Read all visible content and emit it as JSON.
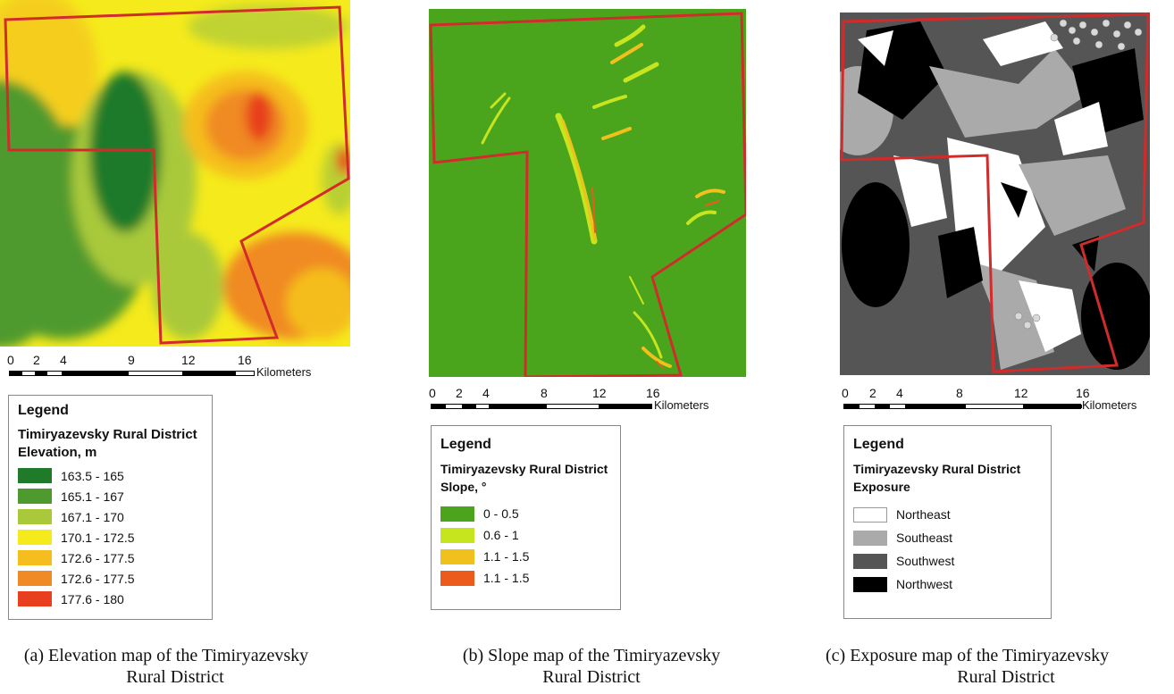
{
  "colors": {
    "boundary": "#d22b2b",
    "elevation_163_165": "#1f7a2a",
    "elevation_165_167": "#4f9a2e",
    "elevation_167_170": "#a9c93a",
    "elevation_170_172": "#f5ea1c",
    "elevation_172_177a": "#f5bd1e",
    "elevation_172_177b": "#f08a24",
    "elevation_177_180": "#e8401e",
    "slope_0_05": "#4aa51c",
    "slope_06_1": "#c6e51e",
    "slope_11_15a": "#f0c01c",
    "slope_11_15b": "#ec5a1c",
    "aspect_ne": "#ffffff",
    "aspect_se": "#aaaaaa",
    "aspect_sw": "#555555",
    "aspect_nw": "#000000"
  },
  "panels": [
    {
      "id": "elevation",
      "scale": {
        "ticks": [
          "0",
          "2",
          "4",
          "9",
          "12",
          "16"
        ],
        "unit": "Kilometers"
      },
      "legend": {
        "title": "Legend",
        "subtitle": "Timiryazevsky Rural District",
        "field": "Elevation, m",
        "items": [
          {
            "label": "163.5 - 165",
            "color": "#1f7a2a"
          },
          {
            "label": "165.1 - 167",
            "color": "#4f9a2e"
          },
          {
            "label": "167.1 - 170",
            "color": "#a9c93a"
          },
          {
            "label": "170.1 - 172.5",
            "color": "#f5ea1c"
          },
          {
            "label": "172.6 - 177.5",
            "color": "#f5bd1e"
          },
          {
            "label": "172.6 - 177.5",
            "color": "#f08a24"
          },
          {
            "label": "177.6 - 180",
            "color": "#e8401e"
          }
        ]
      },
      "caption_line1": "(a) Elevation map of the Timiryazevsky",
      "caption_line2": "Rural District"
    },
    {
      "id": "slope",
      "scale": {
        "ticks": [
          "0",
          "2",
          "4",
          "8",
          "12",
          "16"
        ],
        "unit": "Kilometers"
      },
      "legend": {
        "title": "Legend",
        "subtitle": "Timiryazevsky Rural District",
        "field": "Slope, °",
        "items": [
          {
            "label": "0 - 0.5",
            "color": "#4aa51c"
          },
          {
            "label": "0.6 - 1",
            "color": "#c6e51e"
          },
          {
            "label": "1.1 - 1.5",
            "color": "#f0c01c"
          },
          {
            "label": "1.1 - 1.5",
            "color": "#ec5a1c"
          }
        ]
      },
      "caption_line1": "(b) Slope map of the Timiryazevsky",
      "caption_line2": "Rural District"
    },
    {
      "id": "exposure",
      "scale": {
        "ticks": [
          "0",
          "2",
          "4",
          "8",
          "12",
          "16"
        ],
        "unit": "Kilometers"
      },
      "legend": {
        "title": "Legend",
        "subtitle": "Timiryazevsky Rural District",
        "field": "Exposure",
        "items": [
          {
            "label": "Northeast",
            "color": "#ffffff"
          },
          {
            "label": "Southeast",
            "color": "#aaaaaa"
          },
          {
            "label": "Southwest",
            "color": "#555555"
          },
          {
            "label": "Northwest",
            "color": "#000000"
          }
        ]
      },
      "caption_line1": "(c) Exposure map of the Timiryazevsky",
      "caption_line2": "Rural District"
    }
  ]
}
